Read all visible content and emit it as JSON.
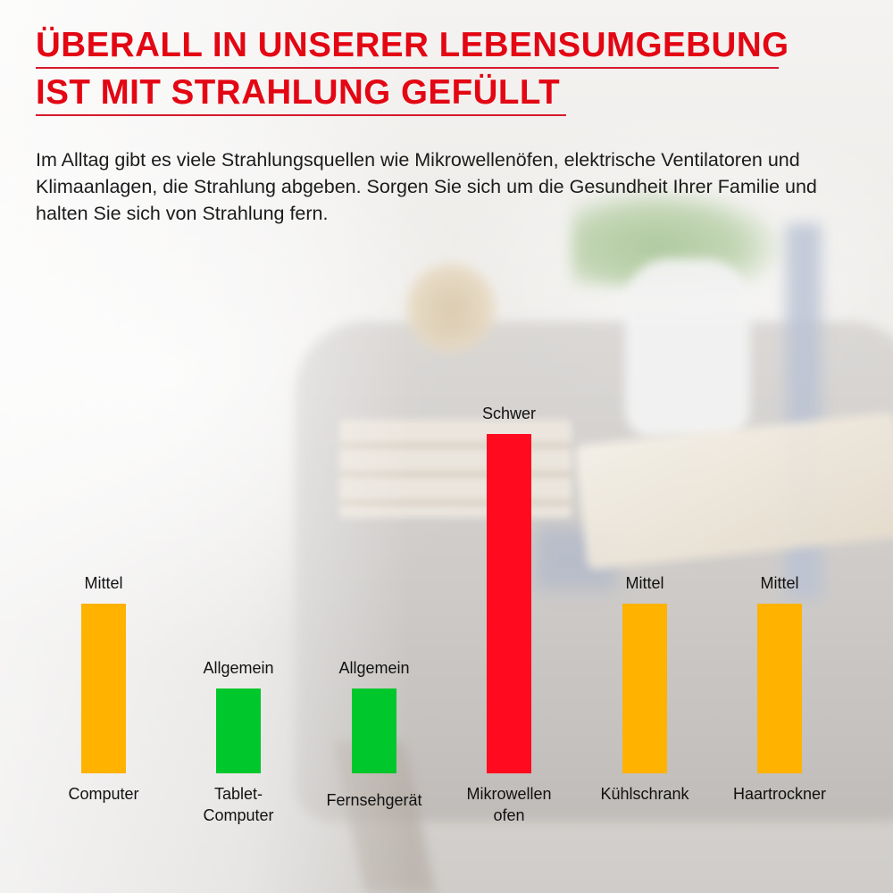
{
  "headline": {
    "line1": "ÜBERALL IN UNSERER LEBENSUMGEBUNG",
    "line2": "IST MIT STRAHLUNG GEFÜLLT"
  },
  "intro": "Im Alltag gibt es viele Strahlungsquellen wie Mikrowellenöfen, elektrische Ventilatoren und Klimaanlagen, die Strahlung abgeben. Sorgen Sie sich um die Gesundheit Ihrer Familie und halten Sie sich von Strahlung fern.",
  "colors": {
    "headline": "#e30613",
    "Allgemein": "#00c72c",
    "Mittel": "#ffb200",
    "Schwer": "#ff0a1e"
  },
  "chart_data": {
    "type": "bar",
    "title": "",
    "xlabel": "",
    "ylabel": "",
    "levels": [
      "Allgemein",
      "Mittel",
      "Schwer"
    ],
    "categories": [
      [
        "Computer"
      ],
      [
        "Tablet-",
        "Computer"
      ],
      [
        "Fernsehgerät"
      ],
      [
        "Mikrowellen",
        "ofen"
      ],
      [
        "Kühlschrank"
      ],
      [
        "Haartrockner"
      ]
    ],
    "values": [
      2,
      1,
      1,
      4,
      2,
      2
    ],
    "level_labels": [
      "Mittel",
      "Allgemein",
      "Allgemein",
      "Schwer",
      "Mittel",
      "Mittel"
    ],
    "ylim": [
      0,
      4
    ]
  }
}
